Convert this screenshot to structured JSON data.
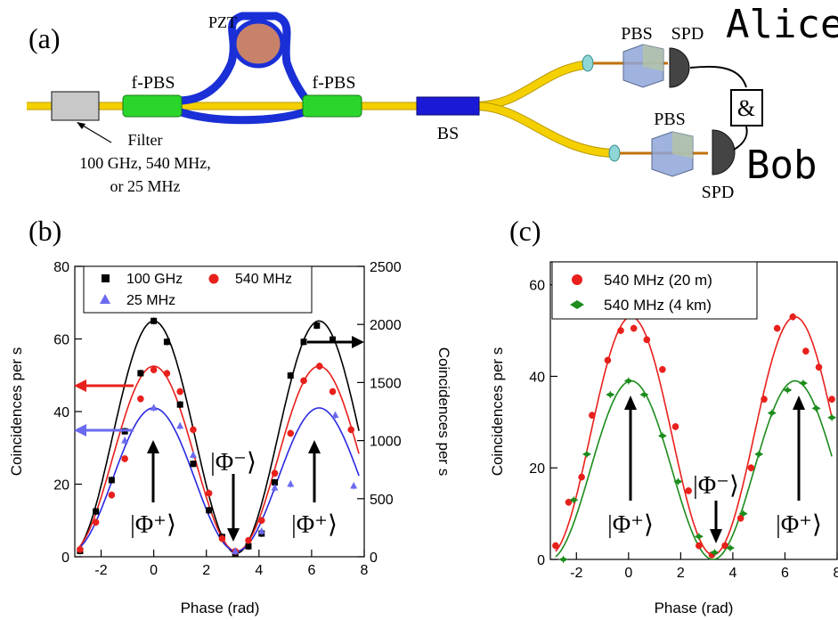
{
  "schematic": {
    "panel_label": "(a)",
    "pzt_label": "PZT",
    "fpbs_left_label": "f-PBS",
    "fpbs_right_label": "f-PBS",
    "bs_label": "BS",
    "filter_label_line1": "Filter",
    "filter_label_line2": "100 GHz, 540 MHz,",
    "filter_label_line3": "or 25 MHz",
    "alice_label": "Alice",
    "bob_label": "Bob",
    "coincidence_label": "&",
    "pbs_top_label": "PBS",
    "spd_top_label": "SPD",
    "pbs_bottom_label": "PBS",
    "spd_bottom_label": "SPD",
    "colors": {
      "fiber": "#f5d000",
      "fiber_loop": "#1a2fd6",
      "fpbs": "#2bd62b",
      "bs": "#1a1ad6",
      "filter": "#c8c8c8",
      "pzt": "#c8826a"
    }
  },
  "chart_data": [
    {
      "panel_label": "(b)",
      "type": "scatter",
      "xlabel": "Phase (rad)",
      "ylabel": "Coincidences per s",
      "ylabel_right": "Coincidences per s",
      "xlim": [
        -3,
        8
      ],
      "ylim": [
        0,
        80
      ],
      "ylim_right": [
        0,
        2500
      ],
      "xticks": [
        "-2",
        "0",
        "2",
        "4",
        "6",
        "8"
      ],
      "yticks": [
        "0",
        "20",
        "40",
        "60",
        "80"
      ],
      "yticks_right": [
        "0",
        "500",
        "1000",
        "1500",
        "2000",
        "2500"
      ],
      "legend": {
        "placement": "top",
        "entries": [
          {
            "name": "100 GHz",
            "marker": "square",
            "color": "#000000"
          },
          {
            "name": "540 MHz",
            "marker": "circle",
            "color": "#e8201c"
          },
          {
            "name": "25 MHz",
            "marker": "triangle",
            "color": "#6a6af0"
          }
        ]
      },
      "annotations": {
        "state_plus_left": "|Φ⁺⟩",
        "state_minus": "|Φ⁻⟩",
        "state_plus_right": "|Φ⁺⟩"
      },
      "series": [
        {
          "name": "100 GHz",
          "axis": "right",
          "color": "#000000",
          "marker": "square",
          "points": [
            [
              -2.8,
              50
            ],
            [
              -2.2,
              390
            ],
            [
              -1.6,
              660
            ],
            [
              -1.1,
              1080
            ],
            [
              -0.5,
              1580
            ],
            [
              0.0,
              2030
            ],
            [
              0.5,
              1850
            ],
            [
              1.0,
              1310
            ],
            [
              1.5,
              800
            ],
            [
              2.1,
              400
            ],
            [
              2.6,
              170
            ],
            [
              3.1,
              30
            ],
            [
              3.6,
              90
            ],
            [
              4.1,
              200
            ],
            [
              4.6,
              640
            ],
            [
              5.2,
              1560
            ],
            [
              5.7,
              1850
            ],
            [
              6.2,
              1990
            ],
            [
              6.8,
              1870
            ]
          ]
        },
        {
          "name": "540 MHz",
          "axis": "left",
          "color": "#e8201c",
          "marker": "circle",
          "points": [
            [
              -2.8,
              2
            ],
            [
              -2.2,
              9.5
            ],
            [
              -1.6,
              17
            ],
            [
              -1.1,
              27
            ],
            [
              -0.5,
              43.5
            ],
            [
              0.0,
              51.5
            ],
            [
              0.5,
              50.5
            ],
            [
              1.0,
              45.5
            ],
            [
              1.5,
              35
            ],
            [
              2.1,
              17.5
            ],
            [
              2.6,
              5
            ],
            [
              3.1,
              1.5
            ],
            [
              3.6,
              4.5
            ],
            [
              4.1,
              10
            ],
            [
              4.6,
              23
            ],
            [
              5.2,
              34
            ],
            [
              5.7,
              48.5
            ],
            [
              6.3,
              52.5
            ],
            [
              6.8,
              45.5
            ],
            [
              7.5,
              35
            ]
          ]
        },
        {
          "name": "25 MHz",
          "axis": "left",
          "color": "#6a6af0",
          "marker": "triangle",
          "points": [
            [
              -1.1,
              32
            ],
            [
              0.0,
              41
            ],
            [
              1.0,
              36
            ],
            [
              3.1,
              1.5
            ],
            [
              4.1,
              7
            ],
            [
              6.9,
              39
            ],
            [
              7.6,
              19.5
            ],
            [
              5.2,
              20
            ],
            [
              4.6,
              19
            ],
            [
              1.5,
              28
            ]
          ]
        }
      ]
    },
    {
      "panel_label": "(c)",
      "type": "scatter",
      "xlabel": "Phase (rad)",
      "ylabel": "Coincidences per s",
      "xlim": [
        -3,
        8
      ],
      "ylim": [
        0,
        65
      ],
      "xticks": [
        "-2",
        "0",
        "2",
        "4",
        "6",
        "8"
      ],
      "yticks": [
        "0",
        "20",
        "40",
        "60"
      ],
      "legend": {
        "placement": "top-left",
        "entries": [
          {
            "name": "540 MHz (20 m)",
            "marker": "circle",
            "color": "#e8201c"
          },
          {
            "name": "540 MHz (4 km)",
            "marker": "diamond",
            "color": "#1c8c1c"
          }
        ]
      },
      "annotations": {
        "state_plus_left": "|Φ⁺⟩",
        "state_minus": "|Φ⁻⟩",
        "state_plus_right": "|Φ⁺⟩"
      },
      "series": [
        {
          "name": "540 MHz (20 m)",
          "color": "#e8201c",
          "marker": "circle",
          "points": [
            [
              -2.8,
              3
            ],
            [
              -2.3,
              12.5
            ],
            [
              -1.8,
              18
            ],
            [
              -1.4,
              31.5
            ],
            [
              -0.8,
              43.5
            ],
            [
              -0.3,
              50
            ],
            [
              0.2,
              50.5
            ],
            [
              0.7,
              48
            ],
            [
              1.3,
              41.5
            ],
            [
              1.8,
              29
            ],
            [
              2.3,
              15
            ],
            [
              2.7,
              3
            ],
            [
              3.2,
              1
            ],
            [
              3.7,
              3
            ],
            [
              4.3,
              9
            ],
            [
              4.7,
              20
            ],
            [
              5.2,
              35
            ],
            [
              5.7,
              50.5
            ],
            [
              6.3,
              53
            ],
            [
              6.8,
              45.5
            ],
            [
              7.3,
              42
            ],
            [
              7.8,
              35
            ]
          ]
        },
        {
          "name": "540 MHz (4 km)",
          "color": "#1c8c1c",
          "marker": "diamond",
          "points": [
            [
              -2.5,
              0
            ],
            [
              -2.1,
              13
            ],
            [
              -1.6,
              23
            ],
            [
              -0.7,
              36
            ],
            [
              0.0,
              39
            ],
            [
              0.6,
              36
            ],
            [
              1.3,
              27
            ],
            [
              1.9,
              17
            ],
            [
              2.7,
              5
            ],
            [
              3.3,
              1.5
            ],
            [
              3.9,
              2.5
            ],
            [
              4.4,
              10
            ],
            [
              5.0,
              23
            ],
            [
              5.5,
              32
            ],
            [
              6.1,
              37
            ],
            [
              6.7,
              38.5
            ],
            [
              7.2,
              33
            ],
            [
              7.8,
              31
            ]
          ]
        }
      ]
    }
  ]
}
